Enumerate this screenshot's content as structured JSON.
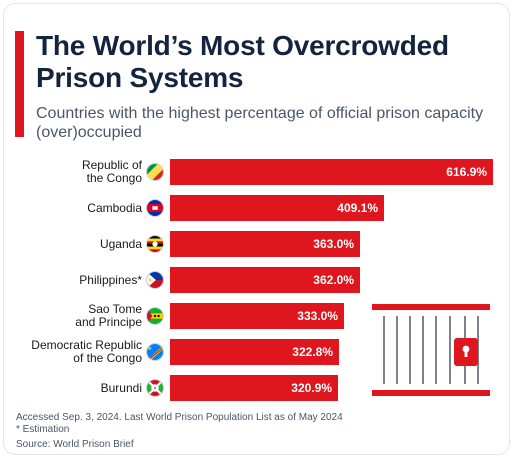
{
  "title": "The World’s Most Overcrowded Prison Systems",
  "subtitle": "Countries with the highest percentage of official prison capacity (over)occupied",
  "chart_data": {
    "type": "bar",
    "orientation": "horizontal",
    "unit": "%",
    "categories": [
      "Republic of the Congo",
      "Cambodia",
      "Uganda",
      "Philippines*",
      "Sao Tome and Principe",
      "Democratic Republic of the Congo",
      "Burundi"
    ],
    "category_labels": [
      "Republic of\nthe Congo",
      "Cambodia",
      "Uganda",
      "Philippines*",
      "Sao Tome\nand Principe",
      "Democratic Republic\nof the Congo",
      "Burundi"
    ],
    "values": [
      616.9,
      409.1,
      363.0,
      362.0,
      333.0,
      322.8,
      320.9
    ],
    "value_labels": [
      "616.9%",
      "409.1%",
      "363.0%",
      "362.0%",
      "333.0%",
      "322.8%",
      "320.9%"
    ],
    "xlim": [
      0,
      616.9
    ],
    "grid": false,
    "bar_color": "#e0161e"
  },
  "flags": [
    "republic-of-the-congo-flag-icon",
    "cambodia-flag-icon",
    "uganda-flag-icon",
    "philippines-flag-icon",
    "sao-tome-and-principe-flag-icon",
    "dr-congo-flag-icon",
    "burundi-flag-icon"
  ],
  "illustration": "prison-cell-icon",
  "footer": {
    "note": "Accessed Sep. 3, 2024. Last World Prison Population List as of May 2024",
    "estimation": "* Estimation",
    "source": "Source: World Prison Brief"
  },
  "colors": {
    "accent": "#e0161e",
    "title": "#14243e",
    "text_muted": "#4a5768"
  }
}
